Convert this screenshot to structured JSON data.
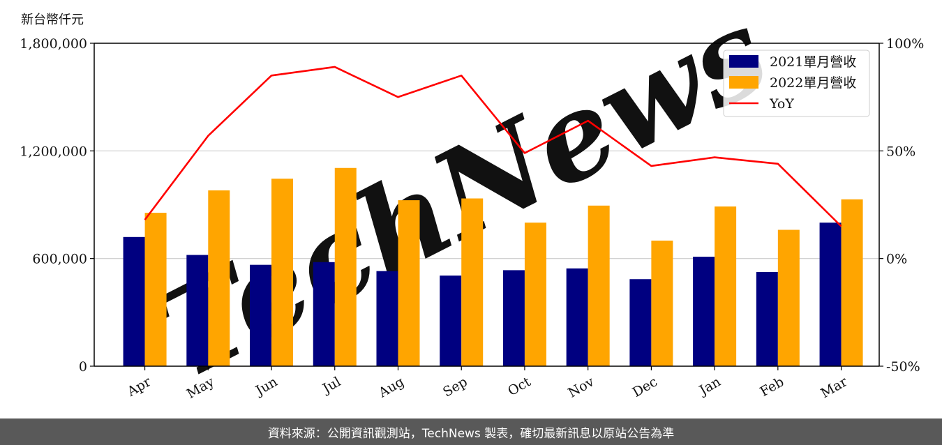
{
  "unit_label": "新台幣仟元",
  "footer_text": "資料來源：公開資訊觀測站，TechNews 製表，確切最新訊息以原站公告為準",
  "watermark": "TechNews",
  "colors": {
    "series2021": "#000080",
    "series2022": "#FFA500",
    "yoy": "#FF0000",
    "footer_bg": "#595959"
  },
  "chart_data": {
    "type": "bar",
    "categories": [
      "Apr",
      "May",
      "Jun",
      "Jul",
      "Aug",
      "Sep",
      "Oct",
      "Nov",
      "Dec",
      "Jan",
      "Feb",
      "Mar"
    ],
    "series": [
      {
        "name": "2021單月營收",
        "values": [
          720000,
          620000,
          565000,
          580000,
          530000,
          505000,
          535000,
          545000,
          485000,
          610000,
          525000,
          800000
        ]
      },
      {
        "name": "2022單月營收",
        "values": [
          855000,
          980000,
          1045000,
          1105000,
          925000,
          935000,
          800000,
          895000,
          700000,
          890000,
          760000,
          930000
        ]
      }
    ],
    "line_series": {
      "name": "YoY",
      "axis": "right",
      "values": [
        18,
        57,
        85,
        89,
        75,
        85,
        49,
        64,
        43,
        47,
        44,
        15
      ]
    },
    "ylim_left": [
      0,
      1800000
    ],
    "yticks_left": [
      "0",
      "600,000",
      "1,200,000",
      "1,800,000"
    ],
    "yticks_left_values": [
      0,
      600000,
      1200000,
      1800000
    ],
    "ylim_right": [
      -50,
      100
    ],
    "yticks_right": [
      "-50%",
      "0%",
      "50%",
      "100%"
    ],
    "yticks_right_values": [
      -50,
      0,
      50,
      100
    ],
    "grid": "horizontal",
    "legend_position": "top-right"
  }
}
